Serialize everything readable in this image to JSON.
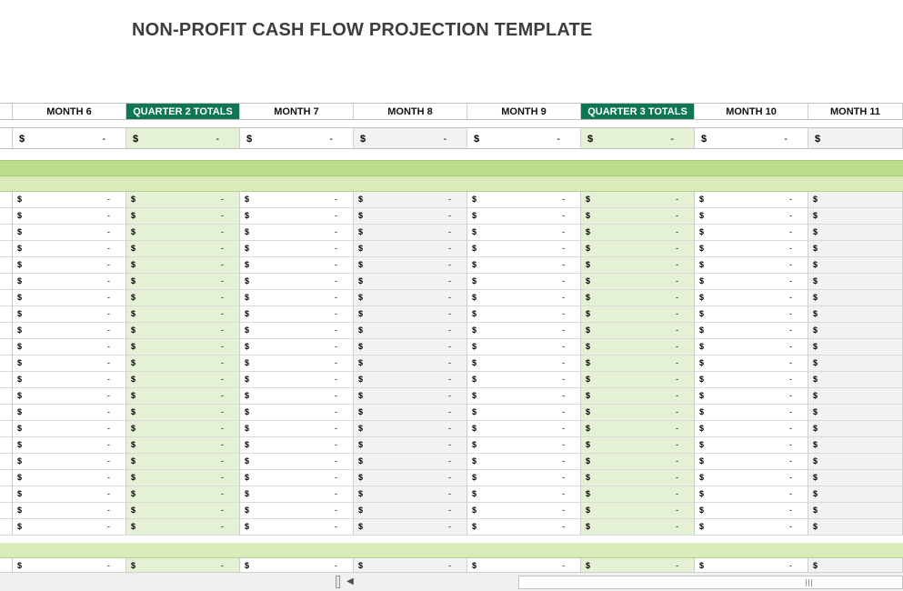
{
  "title": "NON-PROFIT CASH FLOW PROJECTION TEMPLATE",
  "columns": [
    {
      "label": "",
      "type": "stub"
    },
    {
      "label": "MONTH 6",
      "type": "month"
    },
    {
      "label": "QUARTER 2 TOTALS",
      "type": "quarter"
    },
    {
      "label": "MONTH 7",
      "type": "month"
    },
    {
      "label": "MONTH 8",
      "type": "month-grey"
    },
    {
      "label": "MONTH 9",
      "type": "month"
    },
    {
      "label": "QUARTER 3 TOTALS",
      "type": "quarter"
    },
    {
      "label": "MONTH 10",
      "type": "month"
    },
    {
      "label": "MONTH 11",
      "type": "month-grey"
    }
  ],
  "cell": {
    "currency_symbol": "$",
    "empty_value": "-"
  },
  "colors": {
    "quarter_header_bg": "#0e7654",
    "quarter_header_text": "#ffffff",
    "band_dark": "#bcdc89",
    "band_light": "#d8ebb8",
    "quarter_cell_bg": "#e5f1d5",
    "grey_cell_bg": "#f1f2f2"
  },
  "detail_row_count": 21,
  "scrollbar": {
    "left_arrow_icon": "chevron-left-icon",
    "grip_icon": "grip-icon"
  }
}
